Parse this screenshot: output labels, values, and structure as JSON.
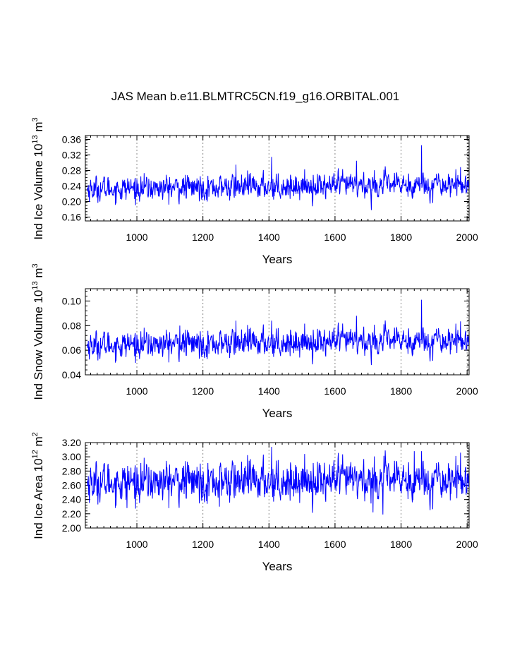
{
  "title": "JAS Mean b.e11.BLMTRC5CN.f19_g16.ORBITAL.001",
  "colors": {
    "series": "#0000ff",
    "axis": "#000000",
    "refline": "#888888"
  },
  "chart_data": [
    {
      "type": "line",
      "ylabel_main": "Ind Ice Volume 10",
      "ylabel_exp": "13",
      "ylabel_unit": " m",
      "ylabel_unit_exp": "3",
      "xlabel": "Years",
      "xlim": [
        844,
        2006
      ],
      "ylim": [
        0.15,
        0.37
      ],
      "xticks": [
        1000,
        1200,
        1400,
        1600,
        1800,
        2000
      ],
      "xtick_labels": [
        "1000",
        "1200",
        "1400",
        "1600",
        "1800",
        "2000"
      ],
      "yticks": [
        0.16,
        0.2,
        0.24,
        0.28,
        0.32,
        0.36
      ],
      "ytick_labels": [
        "0.16",
        "0.20",
        "0.24",
        "0.28",
        "0.32",
        "0.36"
      ],
      "ref_lines_x": [
        1000,
        1200,
        1400,
        1600,
        1800,
        2000
      ],
      "series": {
        "name": "Ind Ice Volume",
        "x_start": 850,
        "x_end": 2005,
        "mean": 0.232,
        "sd": 0.015,
        "trend": 1.2e-05,
        "peaks": [
          [
            1862,
            0.345
          ],
          [
            1408,
            0.315
          ],
          [
            1665,
            0.305
          ],
          [
            1300,
            0.295
          ],
          [
            1710,
            0.178
          ]
        ]
      }
    },
    {
      "type": "line",
      "ylabel_main": "Ind Snow Volume 10",
      "ylabel_exp": "13",
      "ylabel_unit": " m",
      "ylabel_unit_exp": "3",
      "xlabel": "Years",
      "xlim": [
        844,
        2006
      ],
      "ylim": [
        0.04,
        0.11
      ],
      "xticks": [
        1000,
        1200,
        1400,
        1600,
        1800,
        2000
      ],
      "xtick_labels": [
        "1000",
        "1200",
        "1400",
        "1600",
        "1800",
        "2000"
      ],
      "yticks": [
        0.04,
        0.06,
        0.08,
        0.1
      ],
      "ytick_labels": [
        "0.04",
        "0.06",
        "0.08",
        "0.10"
      ],
      "ref_lines_x": [
        1000,
        1200,
        1400,
        1600,
        1800,
        2000
      ],
      "series": {
        "name": "Ind Snow Volume",
        "x_start": 850,
        "x_end": 2005,
        "mean": 0.064,
        "sd": 0.0052,
        "trend": 4e-06,
        "peaks": [
          [
            1862,
            0.101
          ],
          [
            1665,
            0.088
          ],
          [
            1408,
            0.084
          ],
          [
            1300,
            0.084
          ],
          [
            1130,
            0.08
          ],
          [
            1710,
            0.048
          ]
        ]
      }
    },
    {
      "type": "line",
      "ylabel_main": "Ind Ice Area 10",
      "ylabel_exp": "12",
      "ylabel_unit": " m",
      "ylabel_unit_exp": "2",
      "xlabel": "Years",
      "xlim": [
        844,
        2006
      ],
      "ylim": [
        2.0,
        3.2
      ],
      "xticks": [
        1000,
        1200,
        1400,
        1600,
        1800,
        2000
      ],
      "xtick_labels": [
        "1000",
        "1200",
        "1400",
        "1600",
        "1800",
        "2000"
      ],
      "yticks": [
        2.0,
        2.2,
        2.4,
        2.6,
        2.8,
        3.0,
        3.2
      ],
      "ytick_labels": [
        "2.00",
        "2.20",
        "2.40",
        "2.60",
        "2.80",
        "3.00",
        "3.20"
      ],
      "ref_lines_x": [
        1000,
        1200,
        1400,
        1600,
        1800,
        2000
      ],
      "series": {
        "name": "Ind Ice Area",
        "x_start": 850,
        "x_end": 2005,
        "mean": 2.64,
        "sd": 0.13,
        "trend": 4e-05,
        "peaks": [
          [
            1408,
            3.14
          ],
          [
            1862,
            3.08
          ],
          [
            1840,
            3.08
          ],
          [
            1745,
            2.19
          ],
          [
            1715,
            2.22
          ],
          [
            1250,
            2.3
          ],
          [
            970,
            2.28
          ]
        ]
      }
    }
  ]
}
